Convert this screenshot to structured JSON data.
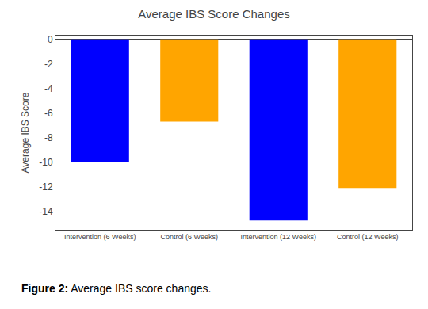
{
  "chart_data": {
    "type": "bar",
    "title": "Average IBS Score Changes",
    "ylabel": "Average IBS Score",
    "categories": [
      "Intervention (6 Weeks)",
      "Control (6 Weeks)",
      "Intervention (12 Weeks)",
      "Control (12 Weeks)"
    ],
    "values": [
      -10.0,
      -6.7,
      -14.75,
      -12.1
    ],
    "colors": [
      "#0000FF",
      "#FFA500",
      "#0000FF",
      "#FFA500"
    ],
    "ylim": [
      -15.5,
      0.3
    ],
    "yticks": [
      0,
      -2,
      -4,
      -6,
      -8,
      -10,
      -12,
      -14
    ],
    "grid": false,
    "annotations": [
      "Figure 2:",
      " Average IBS score changes."
    ]
  }
}
